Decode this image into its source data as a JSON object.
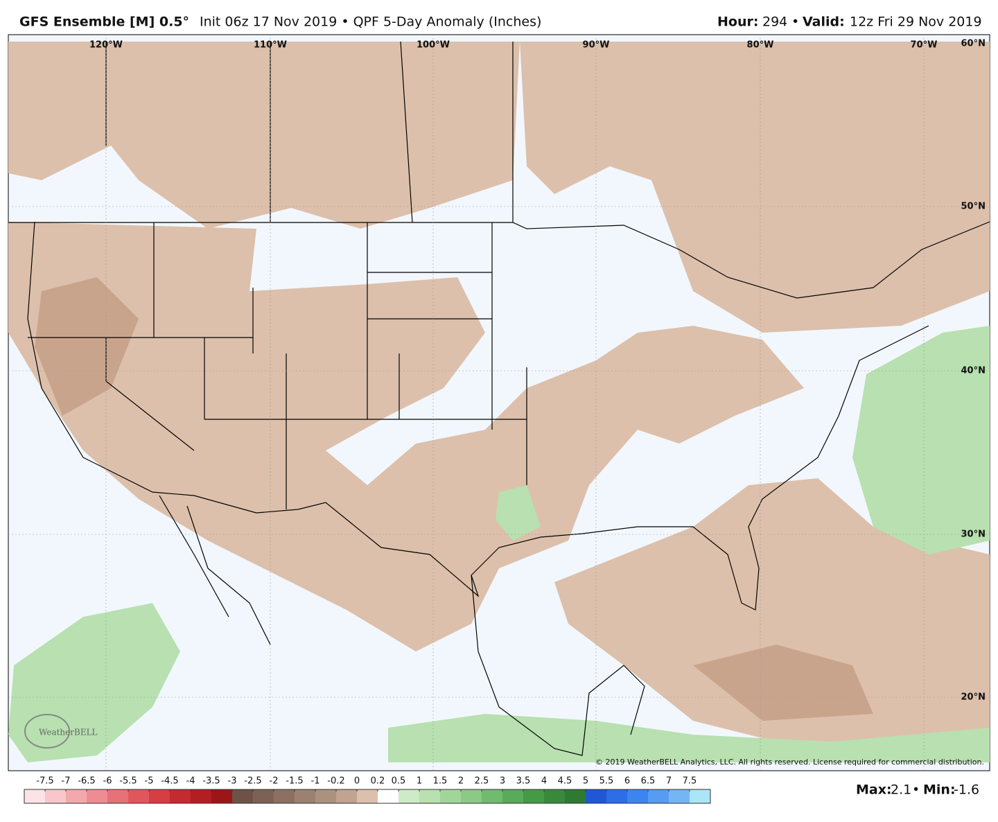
{
  "header": {
    "model": "GFS Ensemble [M] 0.5°",
    "description": "Init 06z 17 Nov 2019 • QPF 5-Day Anomaly (Inches)",
    "hour_label": "Hour:",
    "hour": 294,
    "bullet": "•",
    "valid_label": "Valid:",
    "valid": "12z Fri 29 Nov 2019"
  },
  "map": {
    "longitude_labels": [
      "120°W",
      "110°W",
      "100°W",
      "90°W",
      "80°W",
      "70°W"
    ],
    "latitude_labels": [
      "60°N",
      "50°N",
      "40°N",
      "30°N",
      "20°N"
    ],
    "logo": "WeatherBELL",
    "copyright": "© 2019 WeatherBELL Analytics, LLC. All rights reserved. License required for commercial distribution."
  },
  "colorbar": {
    "ticks": [
      -7.5,
      -7,
      -6.5,
      -6,
      -5.5,
      -5,
      -4.5,
      -4,
      -3.5,
      -3,
      -2.5,
      -2,
      -1.5,
      -1,
      -0.2,
      0,
      0.2,
      0.5,
      1,
      1.5,
      2,
      2.5,
      3,
      3.5,
      4,
      4.5,
      5,
      5.5,
      6,
      6.5,
      7,
      7.5
    ],
    "colors": [
      "#fde3e6",
      "#f9c6cc",
      "#f3a8ae",
      "#ee8c92",
      "#e67176",
      "#df575c",
      "#d53e42",
      "#c52b2e",
      "#b21e22",
      "#9c1518",
      "#6e5248",
      "#7d6154",
      "#8c7062",
      "#9c8070",
      "#ad917f",
      "#c0a390",
      "#dcc0ab",
      "#ffffff",
      "#cdebc6",
      "#b8e0b0",
      "#a2d59a",
      "#8bc985",
      "#70bb6e",
      "#58ab58",
      "#459a46",
      "#388a3a",
      "#2e7a31",
      "#1f57d6",
      "#2b6ee6",
      "#3c85ee",
      "#559cf2",
      "#74b5f6",
      "#a9e6f7"
    ],
    "max_label": "Max:",
    "max": 2.1,
    "min_label": "Min:",
    "min": -1.6
  }
}
